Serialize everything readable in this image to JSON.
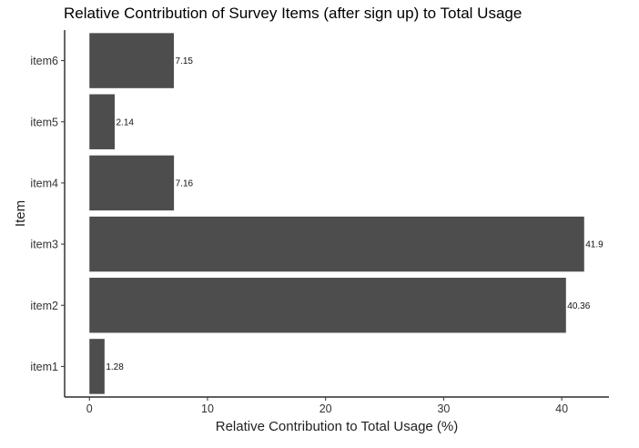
{
  "chart_data": {
    "type": "bar",
    "orientation": "horizontal",
    "title": "Relative Contribution of Survey Items (after sign up) to Total Usage",
    "xlabel": "Relative Contribution to Total Usage (%)",
    "ylabel": "Item",
    "categories": [
      "item1",
      "item2",
      "item3",
      "item4",
      "item5",
      "item6"
    ],
    "values": [
      1.28,
      40.36,
      41.9,
      7.16,
      2.14,
      7.15
    ],
    "data_labels": [
      "1.28",
      "40.36",
      "41.9",
      "7.16",
      "2.14",
      "7.15"
    ],
    "xlim": [
      -2.1,
      44.0
    ],
    "xticks": [
      0,
      10,
      20,
      30,
      40
    ],
    "xtick_labels": [
      "0",
      "10",
      "20",
      "30",
      "40"
    ],
    "bar_color": "#4d4d4d",
    "grid": false,
    "legend": "none"
  }
}
